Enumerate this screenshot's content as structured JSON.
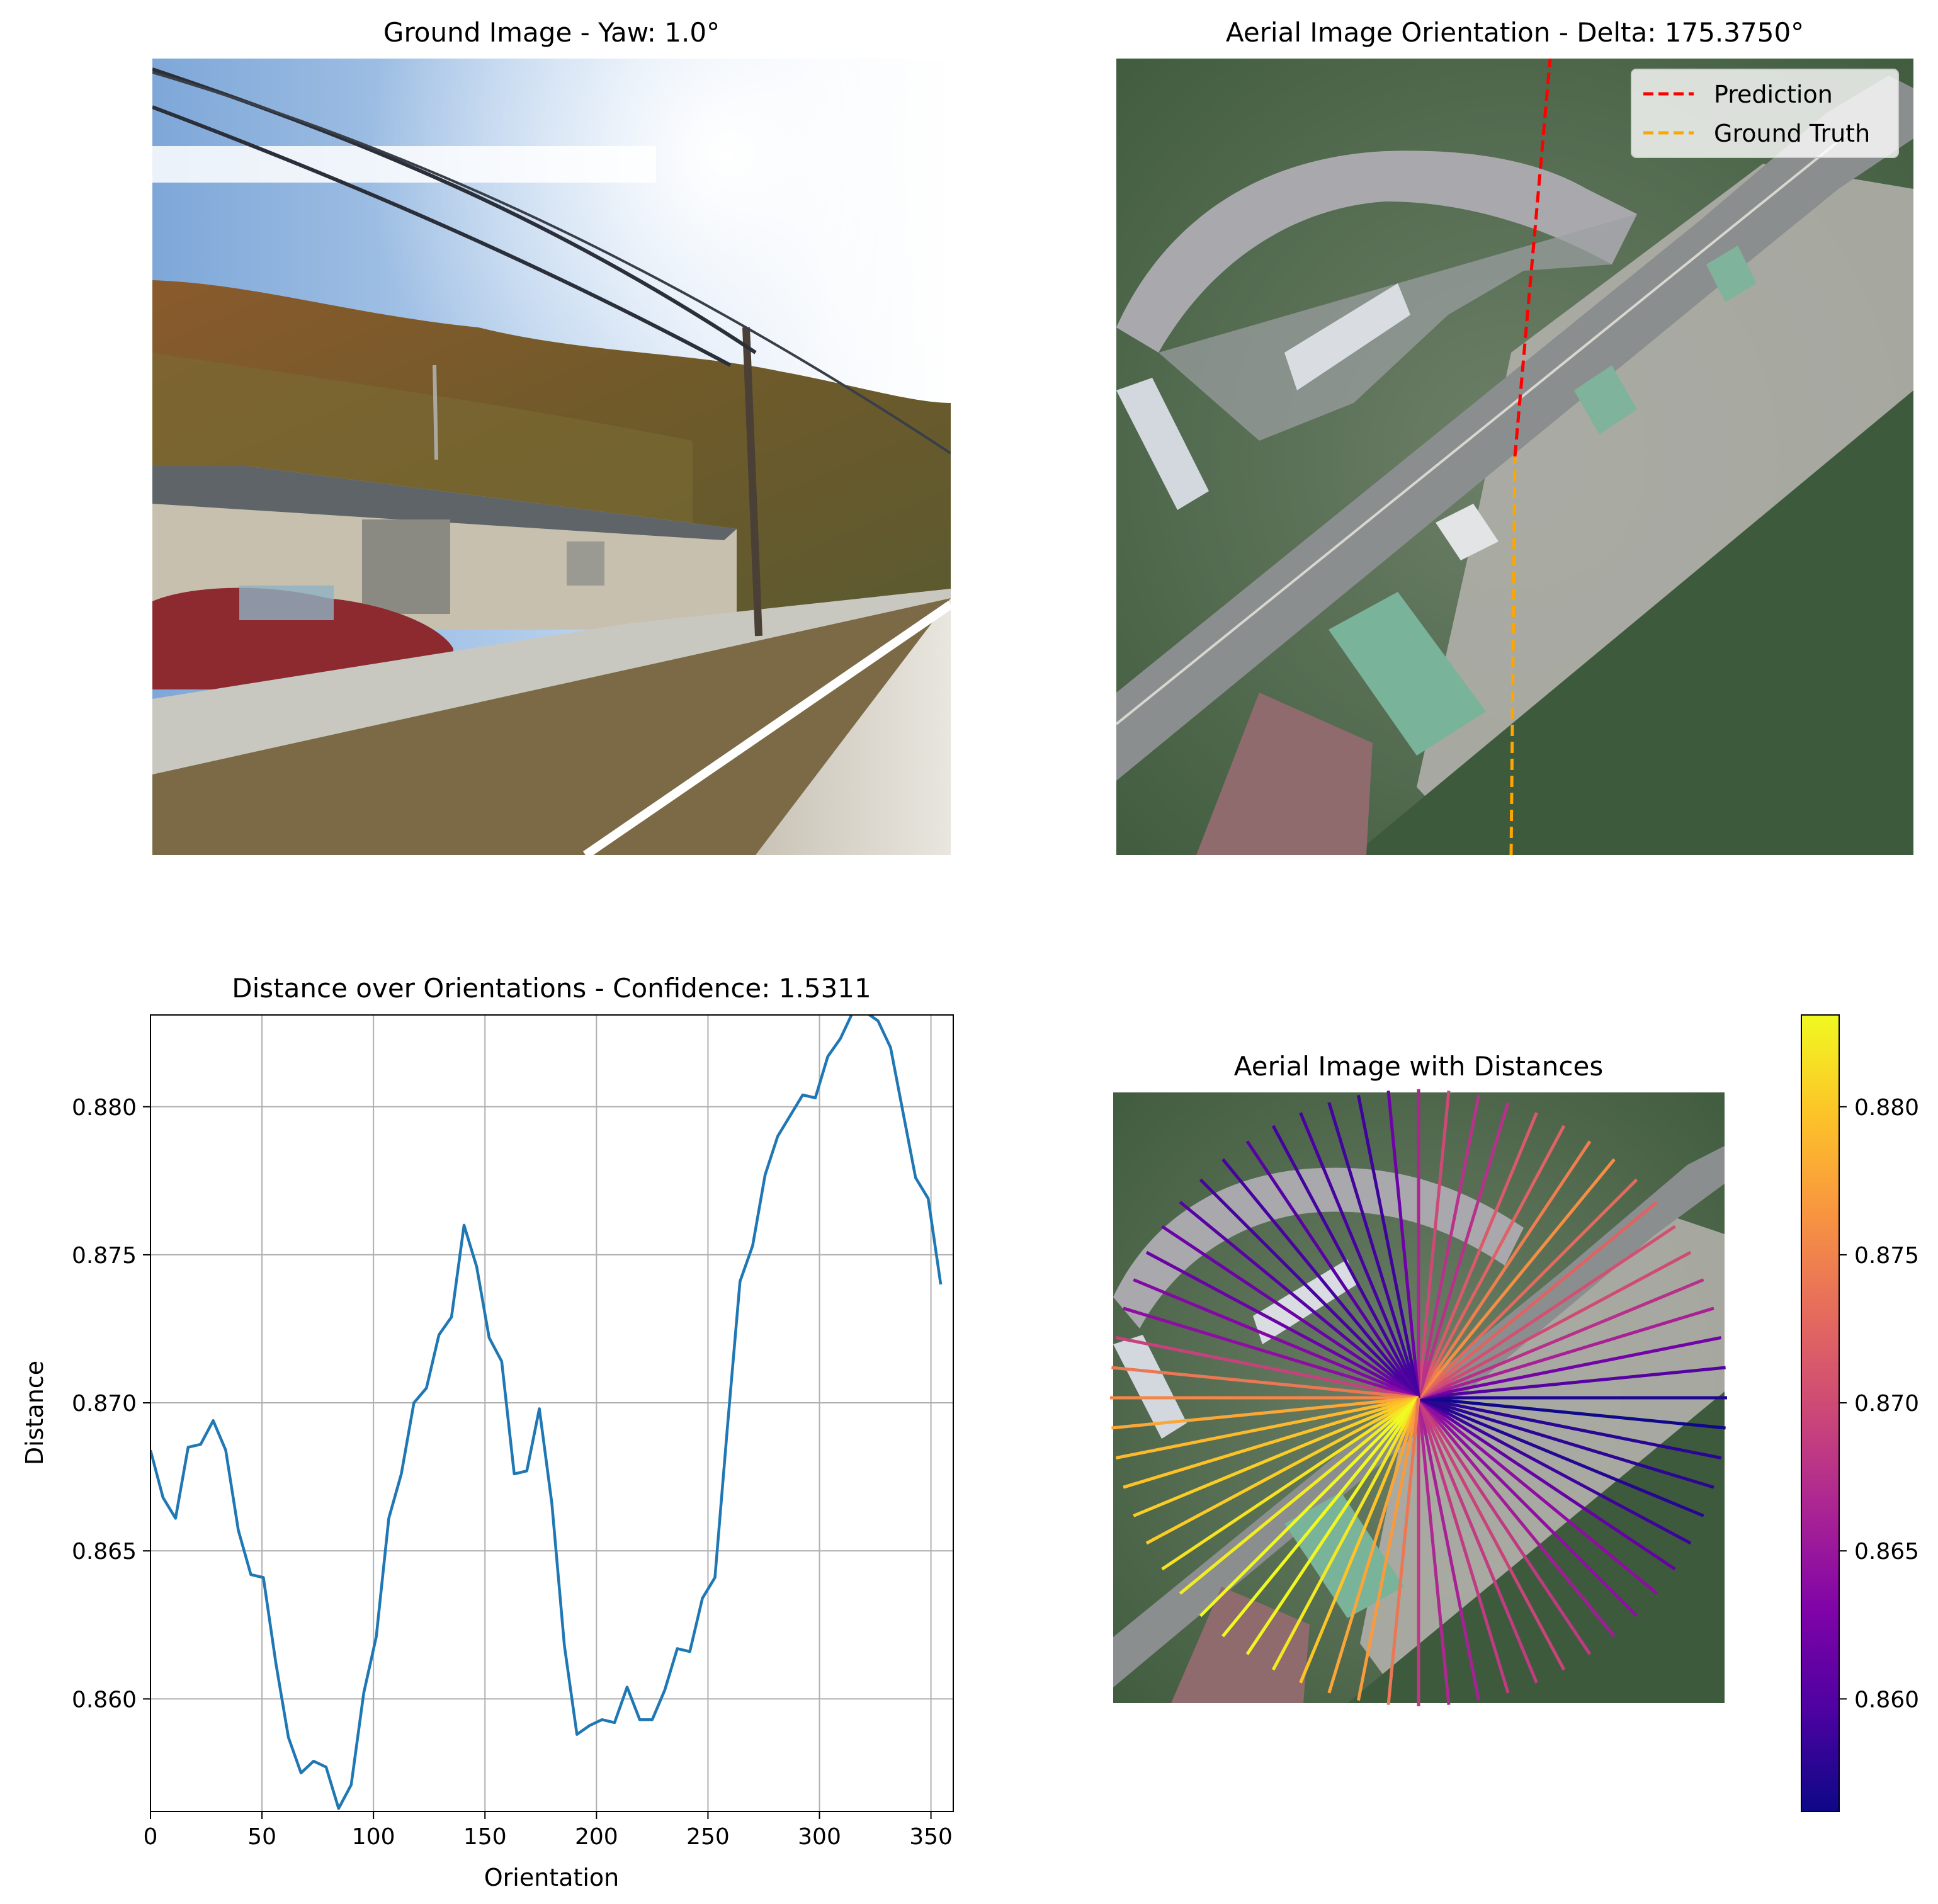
{
  "panels": {
    "ground": {
      "title": "Ground Image - Yaw: 1.0°"
    },
    "aerial": {
      "title": "Aerial Image Orientation - Delta: 175.3750°",
      "legend": {
        "placement": "upper-right",
        "entries": [
          {
            "label": "Prediction",
            "color": "#ff0000",
            "style": "dashed"
          },
          {
            "label": "Ground Truth",
            "color": "#ffa500",
            "style": "dashed"
          }
        ]
      }
    },
    "distances": {
      "title": "Aerial Image with Distances",
      "colormap": "plasma",
      "colorbar_ticks": [
        "0.860",
        "0.865",
        "0.870",
        "0.875",
        "0.880"
      ]
    }
  },
  "chart_data": [
    {
      "type": "line",
      "title": "Distance over Orientations - Confidence: 1.5311",
      "xlabel": "Orientation",
      "ylabel": "Distance",
      "xlim": [
        0,
        360
      ],
      "ylim": [
        0.8562,
        0.8831
      ],
      "grid": true,
      "line_color": "#1f77b4",
      "xticks": [
        "0",
        "50",
        "100",
        "150",
        "200",
        "250",
        "300",
        "350"
      ],
      "yticks": [
        "0.860",
        "0.865",
        "0.870",
        "0.875",
        "0.880"
      ],
      "x": [
        0,
        5.625,
        11.25,
        16.875,
        22.5,
        28.125,
        33.75,
        39.375,
        45,
        50.625,
        56.25,
        61.875,
        67.5,
        73.125,
        78.75,
        84.375,
        90,
        95.625,
        101.25,
        106.875,
        112.5,
        118.125,
        123.75,
        129.375,
        135,
        140.625,
        146.25,
        151.875,
        157.5,
        163.125,
        168.75,
        174.375,
        180,
        185.625,
        191.25,
        196.875,
        202.5,
        208.125,
        213.75,
        219.375,
        225,
        230.625,
        236.25,
        241.875,
        247.5,
        253.125,
        258.75,
        264.375,
        270,
        275.625,
        281.25,
        286.875,
        292.5,
        298.125,
        303.75,
        309.375,
        315,
        320.625,
        326.25,
        331.875,
        337.5,
        343.125,
        348.75,
        354.375
      ],
      "y": [
        0.8684,
        0.8668,
        0.8661,
        0.8685,
        0.8686,
        0.8694,
        0.8684,
        0.8657,
        0.8642,
        0.8641,
        0.8612,
        0.8587,
        0.8575,
        0.8579,
        0.8577,
        0.8563,
        0.8571,
        0.8602,
        0.8621,
        0.8661,
        0.8676,
        0.87,
        0.8705,
        0.8723,
        0.8729,
        0.876,
        0.8746,
        0.8722,
        0.8714,
        0.8676,
        0.8677,
        0.8698,
        0.8666,
        0.8618,
        0.8588,
        0.8591,
        0.8593,
        0.8592,
        0.8604,
        0.8593,
        0.8593,
        0.8603,
        0.8617,
        0.8616,
        0.8634,
        0.8641,
        0.8692,
        0.8741,
        0.8753,
        0.8777,
        0.879,
        0.8797,
        0.8804,
        0.8803,
        0.8817,
        0.8823,
        0.8832,
        0.8832,
        0.8829,
        0.882,
        0.8798,
        0.8776,
        0.8769,
        0.874
      ]
    }
  ]
}
